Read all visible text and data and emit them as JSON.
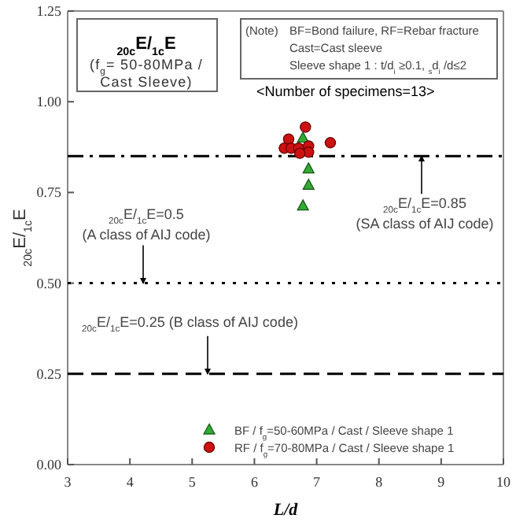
{
  "chart_data": {
    "type": "scatter",
    "title": "$_{20c}$E/$_{1c}$E",
    "subtitle": "(f$_{g}$= 50-80MPa / Cast Sleeve)",
    "xlabel": "L/d",
    "ylabel": "$_{20c}$E/$_{1c}$E",
    "xlim": [
      3,
      10
    ],
    "xticks": [
      3,
      4,
      5,
      6,
      7,
      8,
      9,
      10
    ],
    "ylim": [
      0,
      1.25
    ],
    "yticks": [
      {
        "value": 0,
        "label": "0.00"
      },
      {
        "value": 0.25,
        "label": "0.25"
      },
      {
        "value": 0.5,
        "label": "0.50"
      },
      {
        "value": 0.75,
        "label": "0.75"
      },
      {
        "value": 1,
        "label": "1.00"
      },
      {
        "value": 1.25,
        "label": "1.25"
      }
    ],
    "grid": false,
    "legend": "bottom right",
    "series": [
      {
        "name": "BF / f$_{g}$=50-60MPa / Cast / Sleeve shape 1",
        "color": "#33aa33",
        "marker": "triangle",
        "x": [
          6.78,
          6.87,
          6.87,
          6.78
        ],
        "values": [
          0.9,
          0.815,
          0.77,
          0.713
        ]
      },
      {
        "name": "RF / f$_{g}$=70-80MPa / Cast / Sleeve shape 1",
        "color": "#cc1111",
        "marker": "circle",
        "x": [
          6.82,
          6.55,
          6.48,
          6.59,
          6.71,
          6.87,
          6.87,
          6.73,
          7.22
        ],
        "values": [
          0.93,
          0.897,
          0.872,
          0.872,
          0.872,
          0.878,
          0.861,
          0.858,
          0.887
        ]
      }
    ],
    "ref_lines": [
      {
        "axis": "y",
        "value": 0.85,
        "label": "$_{20c}$E/$_{1c}$E=0.85\n(SA class of AIJ code)",
        "line_style": "dashdot",
        "color": "#000000"
      },
      {
        "axis": "y",
        "value": 0.5,
        "label": "$_{20c}$E/$_{1c}$E=0.5\n(A class of AIJ code)",
        "line_style": "dotted",
        "color": "#000000"
      },
      {
        "axis": "y",
        "value": 0.25,
        "label": "$_{20c}$E/$_{1c}$E=0.25 (B class of AIJ code)",
        "line_style": "dashed",
        "color": "#000000"
      }
    ],
    "annotations": [
      "(Note)",
      "BF=Bond failure, RF=Rebar fracture",
      "Cast=Cast sleeve",
      "Sleeve shape 1 : t/d$_{i}$ ≥0.1, $_{s}$d$_{i}$ /d≤2",
      "<Number of specimens=13>"
    ]
  }
}
